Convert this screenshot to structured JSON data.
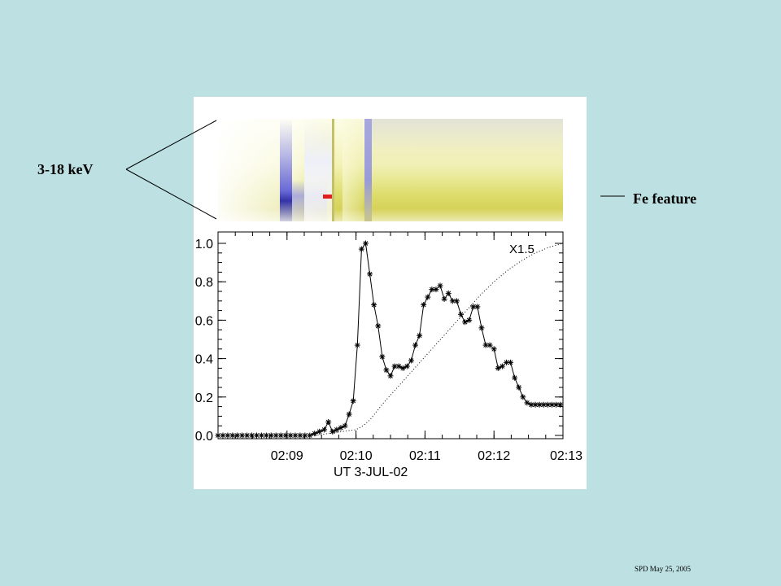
{
  "labels": {
    "energy_band": "3-18 keV",
    "fe_feature": "Fe feature",
    "footer": "SPD May 25, 2005"
  },
  "colors": {
    "background": "#bde0e2",
    "spectrogram_yellow": "#d6d25a",
    "spectrogram_blue": "#6a6ad8",
    "spectrogram_red": "#e02020"
  },
  "chart_data": {
    "type": "line",
    "title": "",
    "xlabel": "UT  3-JUL-02",
    "ylabel": "",
    "x_unit": "minutes after 02:08:00 UT",
    "xlim": [
      0,
      5
    ],
    "ylim": [
      0,
      1.0
    ],
    "x_ticks": [
      {
        "value": 1,
        "label": "02:09"
      },
      {
        "value": 2,
        "label": "02:10"
      },
      {
        "value": 3,
        "label": "02:11"
      },
      {
        "value": 4,
        "label": "02:12"
      },
      {
        "value": 5,
        "label": "02:13"
      }
    ],
    "y_ticks": [
      {
        "value": 0.0,
        "label": "0.0"
      },
      {
        "value": 0.2,
        "label": "0.2"
      },
      {
        "value": 0.4,
        "label": "0.4"
      },
      {
        "value": 0.6,
        "label": "0.6"
      },
      {
        "value": 0.8,
        "label": "0.8"
      },
      {
        "value": 1.0,
        "label": "1.0"
      }
    ],
    "annotation": "X1.5",
    "series": [
      {
        "style": "solid-asterisk",
        "x": [
          0.0,
          0.07,
          0.14,
          0.21,
          0.28,
          0.35,
          0.42,
          0.49,
          0.56,
          0.63,
          0.7,
          0.77,
          0.84,
          0.91,
          0.98,
          1.05,
          1.12,
          1.19,
          1.26,
          1.33,
          1.4,
          1.47,
          1.54,
          1.6,
          1.66,
          1.72,
          1.78,
          1.84,
          1.9,
          1.96,
          2.02,
          2.08,
          2.14,
          2.2,
          2.26,
          2.32,
          2.38,
          2.44,
          2.5,
          2.56,
          2.62,
          2.68,
          2.74,
          2.8,
          2.86,
          2.92,
          2.98,
          3.04,
          3.1,
          3.16,
          3.22,
          3.28,
          3.34,
          3.4,
          3.46,
          3.52,
          3.58,
          3.64,
          3.7,
          3.76,
          3.82,
          3.88,
          3.94,
          4.0,
          4.06,
          4.12,
          4.18,
          4.24,
          4.3,
          4.36,
          4.42,
          4.48,
          4.54,
          4.6,
          4.66,
          4.72,
          4.78,
          4.84,
          4.9,
          4.96
        ],
        "y": [
          0.0,
          0.0,
          0.0,
          0.0,
          0.0,
          0.0,
          0.0,
          0.0,
          0.0,
          0.0,
          0.0,
          0.0,
          0.0,
          0.0,
          0.0,
          0.0,
          0.0,
          0.0,
          0.0,
          0.0,
          0.01,
          0.02,
          0.03,
          0.07,
          0.02,
          0.03,
          0.04,
          0.05,
          0.11,
          0.18,
          0.47,
          0.97,
          1.0,
          0.84,
          0.68,
          0.57,
          0.41,
          0.34,
          0.31,
          0.36,
          0.36,
          0.35,
          0.36,
          0.39,
          0.47,
          0.52,
          0.68,
          0.72,
          0.76,
          0.76,
          0.78,
          0.71,
          0.74,
          0.7,
          0.7,
          0.63,
          0.59,
          0.6,
          0.67,
          0.67,
          0.56,
          0.47,
          0.47,
          0.45,
          0.35,
          0.36,
          0.38,
          0.38,
          0.3,
          0.25,
          0.2,
          0.17,
          0.16,
          0.16,
          0.16,
          0.16,
          0.16,
          0.16,
          0.16,
          0.16
        ]
      },
      {
        "style": "dotted",
        "x": [
          0.0,
          0.5,
          1.0,
          1.4,
          1.6,
          1.8,
          2.0,
          2.1,
          2.2,
          2.4,
          2.6,
          2.8,
          3.0,
          3.2,
          3.4,
          3.6,
          3.8,
          4.0,
          4.2,
          4.4,
          4.6,
          4.8,
          5.0
        ],
        "y": [
          0.0,
          0.0,
          0.0,
          0.0,
          0.01,
          0.02,
          0.03,
          0.05,
          0.08,
          0.17,
          0.25,
          0.33,
          0.41,
          0.49,
          0.57,
          0.65,
          0.73,
          0.8,
          0.86,
          0.91,
          0.95,
          0.98,
          1.0
        ]
      }
    ]
  }
}
